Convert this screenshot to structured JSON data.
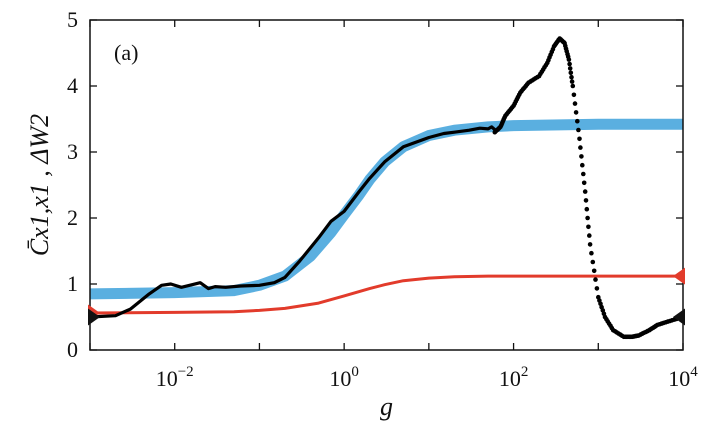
{
  "chart_data": {
    "type": "line",
    "panel_label": "(a)",
    "xlabel": "g",
    "ylabel": "C̄x1,x1 , ΔW2",
    "xscale": "log",
    "xlim": [
      0.001,
      10000
    ],
    "ylim": [
      0,
      5
    ],
    "yticks": [
      0,
      1,
      2,
      3,
      4,
      5
    ],
    "xticks": [
      {
        "value": 0.01,
        "base": "10",
        "exp": "−2"
      },
      {
        "value": 1,
        "base": "10",
        "exp": "0"
      },
      {
        "value": 100,
        "base": "10",
        "exp": "2"
      },
      {
        "value": 10000,
        "base": "10",
        "exp": "4"
      }
    ],
    "grid": false,
    "series": [
      {
        "style": "thick-line",
        "color": "#5aafe0",
        "x": [
          0.001,
          0.01,
          0.05,
          0.1,
          0.2,
          0.4,
          0.7,
          1,
          1.5,
          2,
          3,
          5,
          10,
          20,
          50,
          100,
          1000,
          10000
        ],
        "y": [
          0.85,
          0.87,
          0.9,
          0.98,
          1.12,
          1.42,
          1.78,
          2.05,
          2.35,
          2.58,
          2.85,
          3.08,
          3.25,
          3.33,
          3.38,
          3.4,
          3.42,
          3.42
        ]
      },
      {
        "style": "thin-line",
        "color": "#e23b2b",
        "x": [
          0.001,
          0.01,
          0.05,
          0.1,
          0.2,
          0.5,
          1,
          2,
          3,
          5,
          10,
          20,
          50,
          100,
          1000,
          10000
        ],
        "y": [
          0.56,
          0.57,
          0.58,
          0.6,
          0.63,
          0.71,
          0.82,
          0.93,
          0.99,
          1.05,
          1.09,
          1.11,
          1.12,
          1.12,
          1.12,
          1.12
        ]
      },
      {
        "style": "solid-black",
        "color": "#000000",
        "x": [
          0.001,
          0.002,
          0.003,
          0.005,
          0.007,
          0.009,
          0.012,
          0.015,
          0.02,
          0.025,
          0.03,
          0.04,
          0.06,
          0.1,
          0.15,
          0.2,
          0.3,
          0.5,
          0.7,
          1,
          1.5,
          2,
          3,
          5,
          10,
          15,
          20,
          30,
          40,
          50,
          55,
          60
        ],
        "y": [
          0.5,
          0.52,
          0.62,
          0.85,
          0.98,
          1.0,
          0.95,
          0.98,
          1.02,
          0.93,
          0.96,
          0.95,
          0.97,
          0.98,
          1.02,
          1.1,
          1.35,
          1.7,
          1.95,
          2.1,
          2.4,
          2.6,
          2.85,
          3.08,
          3.22,
          3.28,
          3.3,
          3.33,
          3.36,
          3.35,
          3.38,
          3.34
        ]
      },
      {
        "style": "dotted-black",
        "color": "#000000",
        "x": [
          60,
          70,
          80,
          100,
          120,
          150,
          200,
          250,
          300,
          350,
          400,
          450,
          500,
          600,
          700,
          800,
          1000,
          1200,
          1500,
          2000,
          2500,
          3000,
          4000,
          5000,
          7000,
          10000
        ],
        "y": [
          3.3,
          3.38,
          3.55,
          3.7,
          3.9,
          4.05,
          4.15,
          4.35,
          4.6,
          4.72,
          4.65,
          4.4,
          4.0,
          3.2,
          2.4,
          1.6,
          0.8,
          0.5,
          0.3,
          0.2,
          0.2,
          0.22,
          0.3,
          0.38,
          0.44,
          0.5
        ]
      }
    ],
    "markers": [
      {
        "shape": "triangle-left",
        "color": "#e23b2b",
        "x": 10000,
        "y": 1.12
      },
      {
        "shape": "triangle-left",
        "color": "#111111",
        "x": 10000,
        "y": 0.5
      },
      {
        "shape": "triangle-right",
        "color": "#e23b2b",
        "x": 0.001,
        "y": 0.56
      },
      {
        "shape": "triangle-right",
        "color": "#111111",
        "x": 0.001,
        "y": 0.5
      }
    ]
  }
}
